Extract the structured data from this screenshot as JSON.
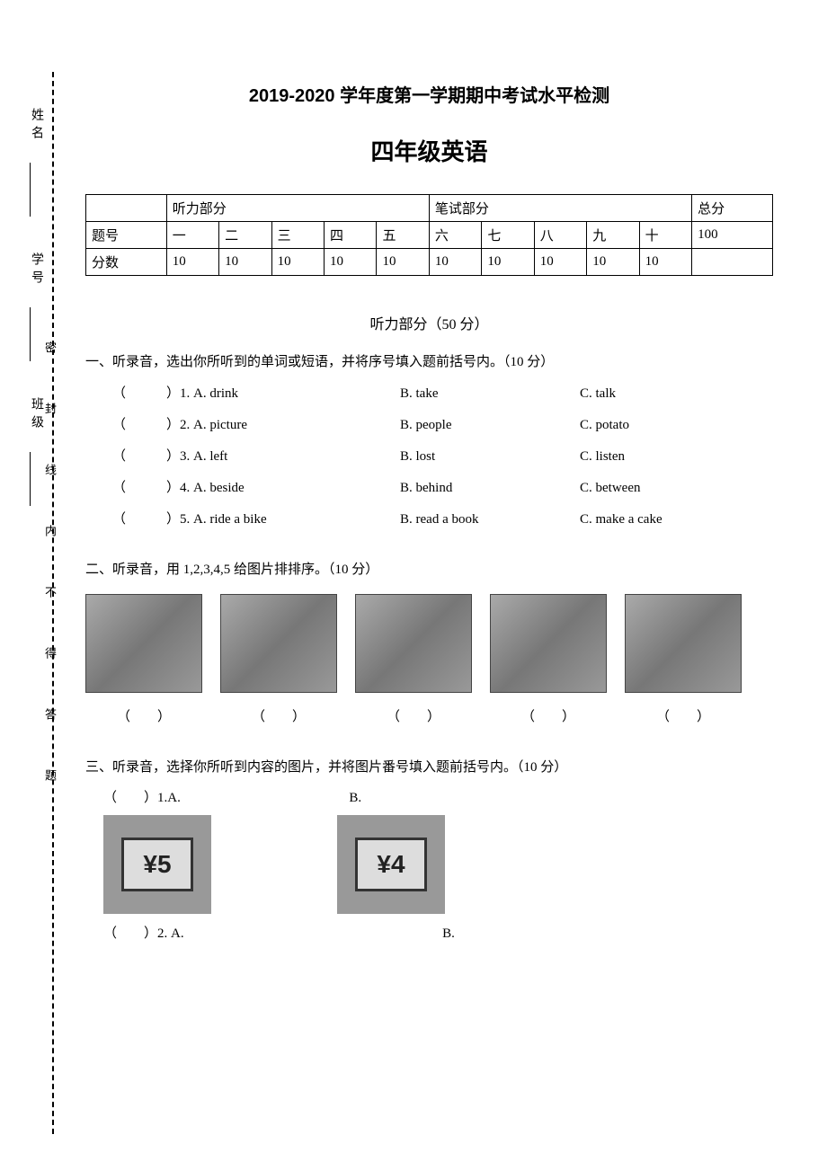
{
  "header": {
    "title1": "2019-2020 学年度第一学期期中考试水平检测",
    "title2": "四年级英语"
  },
  "binding": {
    "class_label": "班级",
    "id_label": "学号",
    "name_label": "姓名",
    "seal_text": "密 封 线 内 不 得 答 题"
  },
  "score_table": {
    "listening_header": "听力部分",
    "written_header": "笔试部分",
    "total_header": "总分",
    "row1_label": "题号",
    "row2_label": "分数",
    "cols": [
      "一",
      "二",
      "三",
      "四",
      "五",
      "六",
      "七",
      "八",
      "九",
      "十"
    ],
    "scores": [
      "10",
      "10",
      "10",
      "10",
      "10",
      "10",
      "10",
      "10",
      "10",
      "10"
    ],
    "total": "100"
  },
  "listening_title": "听力部分（50 分）",
  "q1": {
    "instruction": "一、听录音，选出你所听到的单词或短语，并将序号填入题前括号内。（10 分）",
    "items": [
      {
        "n": "1",
        "a": "A. drink",
        "b": "B. take",
        "c": "C. talk"
      },
      {
        "n": "2",
        "a": "A. picture",
        "b": "B. people",
        "c": "C. potato"
      },
      {
        "n": "3",
        "a": "A. left",
        "b": "B. lost",
        "c": "C. listen"
      },
      {
        "n": "4",
        "a": "A. beside",
        "b": "B. behind",
        "c": "C. between"
      },
      {
        "n": "5",
        "a": "A. ride a bike",
        "b": "B. read a book",
        "c": "C. make a cake"
      }
    ]
  },
  "q2": {
    "instruction": "二、听录音，用 1,2,3,4,5 给图片排排序。（10 分）",
    "paren": "（　　）"
  },
  "q3": {
    "instruction": "三、听录音，选择你所听到内容的图片，并将图片番号填入题前括号内。（10 分）",
    "item1_prefix": "（　　）1.A.",
    "item1_b": "B.",
    "item2_prefix": "（　　）2. A.",
    "item2_b": "B.",
    "price_a": "¥5",
    "price_b": "¥4"
  }
}
